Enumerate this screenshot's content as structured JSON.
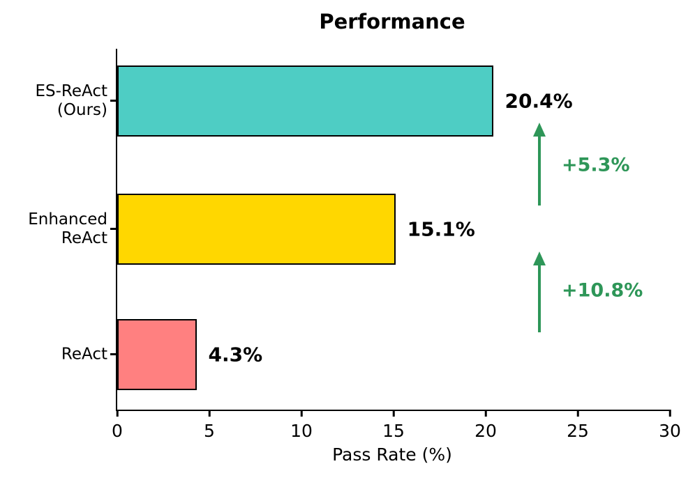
{
  "chart_data": {
    "type": "bar",
    "orientation": "horizontal",
    "title": "Performance",
    "xlabel": "Pass Rate (%)",
    "ylabel": "",
    "xlim": [
      0,
      30
    ],
    "xticks": [
      "0",
      "5",
      "10",
      "15",
      "20",
      "25",
      "30"
    ],
    "xtick_values": [
      0,
      5,
      10,
      15,
      20,
      25,
      30
    ],
    "grid": false,
    "legend": "none",
    "categories": [
      [
        "ES-ReAct",
        "(Ours)"
      ],
      [
        "Enhanced",
        "ReAct"
      ],
      [
        "ReAct"
      ]
    ],
    "values": [
      20.4,
      15.1,
      4.3
    ],
    "value_labels": [
      "20.4%",
      "15.1%",
      "4.3%"
    ],
    "bar_colors": [
      "#4ECDC4",
      "#FFD700",
      "#FF8080"
    ],
    "bar_edge_color": "#000000",
    "axis_color": "#000000",
    "annotation_color": "#2E9658",
    "annotations": [
      {
        "text": "+5.3%",
        "arrow_icon": "up-arrow",
        "meaning": "gain from Enhanced ReAct to ES-ReAct (Ours)"
      },
      {
        "text": "+10.8%",
        "arrow_icon": "up-arrow",
        "meaning": "gain from ReAct to Enhanced ReAct"
      }
    ]
  }
}
